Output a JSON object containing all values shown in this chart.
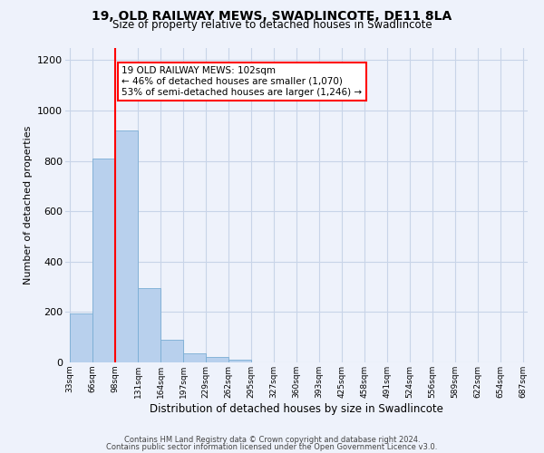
{
  "title": "19, OLD RAILWAY MEWS, SWADLINCOTE, DE11 8LA",
  "subtitle": "Size of property relative to detached houses in Swadlincote",
  "xlabel": "Distribution of detached houses by size in Swadlincote",
  "ylabel": "Number of detached properties",
  "bin_labels": [
    "33sqm",
    "66sqm",
    "98sqm",
    "131sqm",
    "164sqm",
    "197sqm",
    "229sqm",
    "262sqm",
    "295sqm",
    "327sqm",
    "360sqm",
    "393sqm",
    "425sqm",
    "458sqm",
    "491sqm",
    "524sqm",
    "556sqm",
    "589sqm",
    "622sqm",
    "654sqm",
    "687sqm"
  ],
  "bar_heights": [
    195,
    810,
    920,
    295,
    90,
    35,
    20,
    10,
    0,
    0,
    0,
    0,
    0,
    0,
    0,
    0,
    0,
    0,
    0,
    0
  ],
  "bar_color": "#b8d0ed",
  "bar_edge_color": "#7aadd4",
  "vline_x_index": 2,
  "vline_color": "red",
  "annotation_text": "19 OLD RAILWAY MEWS: 102sqm\n← 46% of detached houses are smaller (1,070)\n53% of semi-detached houses are larger (1,246) →",
  "annotation_box_color": "white",
  "annotation_box_edge": "red",
  "ylim": [
    0,
    1250
  ],
  "yticks": [
    0,
    200,
    400,
    600,
    800,
    1000,
    1200
  ],
  "footer_line1": "Contains HM Land Registry data © Crown copyright and database right 2024.",
  "footer_line2": "Contains public sector information licensed under the Open Government Licence v3.0.",
  "background_color": "#eef2fb",
  "grid_color": "#c8d4e8"
}
